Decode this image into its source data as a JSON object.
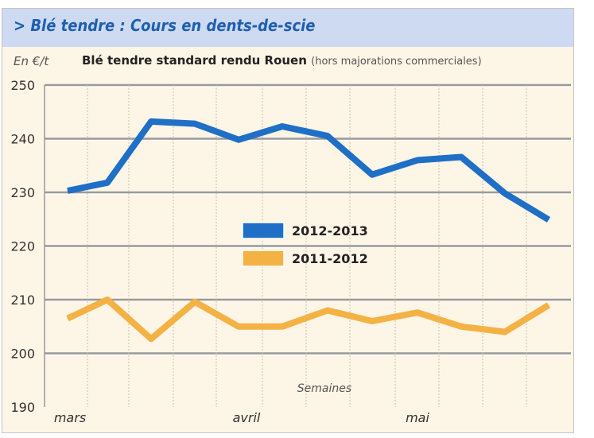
{
  "header": {
    "title": "> Blé tendre : Cours en dents-de-scie"
  },
  "chart_data": {
    "type": "line",
    "title": "Blé tendre standard rendu Rouen",
    "subtitle": "(hors majorations commerciales)",
    "ylabel": "En €/t",
    "xlabel": "Semaines",
    "ylim": [
      190,
      250
    ],
    "yticks": [
      190,
      200,
      210,
      220,
      230,
      240,
      250
    ],
    "month_labels": [
      "mars",
      "avril",
      "mai"
    ],
    "grid": true,
    "legend_position": "center",
    "series": [
      {
        "name": "2012-2013",
        "color": "#1f6fc6",
        "values": [
          230.3,
          231.8,
          243.2,
          242.8,
          239.8,
          242.3,
          240.5,
          233.3,
          236.0,
          236.6,
          229.8,
          224.9
        ]
      },
      {
        "name": "2011-2012",
        "color": "#f5b244",
        "values": [
          206.5,
          210.0,
          202.7,
          209.6,
          205.0,
          205.0,
          208.0,
          206.0,
          207.6,
          205.0,
          204.0,
          209.0
        ]
      }
    ]
  }
}
